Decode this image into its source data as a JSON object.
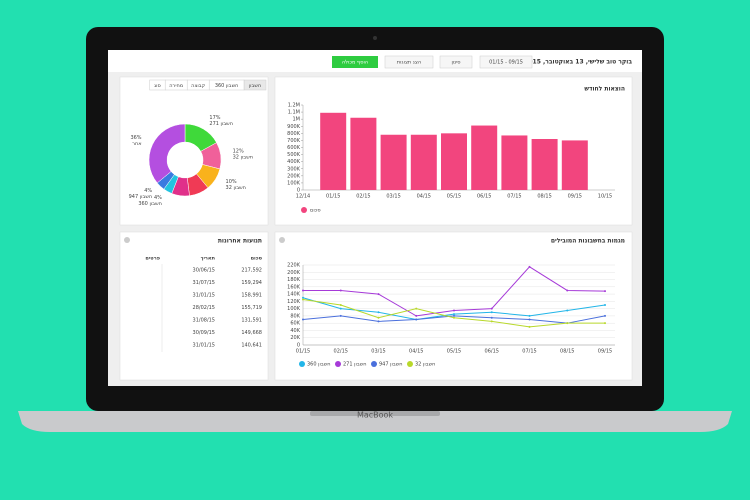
{
  "header": {
    "greeting": "בוקר טוב שלישי, 13 באוקטובר, 2015",
    "date_range": "01/15 - 09/15",
    "filter": "סינון",
    "views": "הצג תצוגות",
    "add": "הוסף מכולה"
  },
  "laptop": "MacBook",
  "tabs": [
    "חשבון",
    "חשבון 360",
    "קבוצה",
    "מחירה",
    "סוג"
  ],
  "table": {
    "title": "תנועות אחרונות",
    "columns": [
      "סכום",
      "תאריך",
      "פרטים"
    ],
    "rows": [
      [
        "217,592",
        "30/06/15"
      ],
      [
        "159,294",
        "31/07/15"
      ],
      [
        "158,991",
        "31/01/15"
      ],
      [
        "155,719",
        "28/02/15"
      ],
      [
        "131,591",
        "31/08/15"
      ],
      [
        "149,668",
        "30/09/15"
      ],
      [
        "140,641",
        "31/01/15"
      ]
    ]
  },
  "chart_data": [
    {
      "type": "donut",
      "categories": [
        "חשבון 271",
        "חשבון 32",
        "חשבון 32",
        null,
        null,
        "חשבון 360",
        "חשבון 947",
        "אחר"
      ],
      "values": [
        17,
        12,
        10,
        9,
        8,
        4,
        4,
        36
      ],
      "value_labels": [
        "17%",
        "12%",
        "10%",
        null,
        null,
        "4%",
        "4%",
        "36%"
      ],
      "colors": [
        "#3fd93a",
        "#f0609a",
        "#f9b21c",
        "#f03a55",
        "#e0308a",
        "#22c3e0",
        "#3a7be0",
        "#b44fe0"
      ]
    },
    {
      "type": "bar",
      "title": "הוצאות לחודש",
      "categories": [
        "12/14",
        "01/15",
        "02/15",
        "03/15",
        "04/15",
        "05/15",
        "06/15",
        "07/15",
        "08/15",
        "09/15",
        "10/15"
      ],
      "series": [
        {
          "name": "סכום",
          "color": "#f2457e",
          "values": [
            null,
            1090000,
            1020000,
            780000,
            780000,
            800000,
            910000,
            770000,
            720000,
            700000,
            null
          ]
        }
      ],
      "ylim": [
        0,
        1200000
      ],
      "yticks": [
        0,
        {
          "value": 100000,
          "label": "100K"
        },
        {
          "value": 200000,
          "label": "200K"
        },
        {
          "value": 300000,
          "label": "300K"
        },
        {
          "value": 400000,
          "label": "400K"
        },
        {
          "value": 500000,
          "label": "500K"
        },
        {
          "value": 600000,
          "label": "600K"
        },
        {
          "value": 700000,
          "label": "700K"
        },
        {
          "value": 800000,
          "label": "800K"
        },
        {
          "value": 900000,
          "label": "900K"
        },
        {
          "value": 1000000,
          "label": "1M"
        },
        {
          "value": 1100000,
          "label": "1.1M"
        },
        {
          "value": 1200000,
          "label": "1.2M"
        }
      ],
      "grid": false
    },
    {
      "type": "line",
      "title": "מגמות בחשבונות המובילים",
      "categories": [
        "01/15",
        "02/15",
        "03/15",
        "04/15",
        "05/15",
        "06/15",
        "07/15",
        "08/15",
        "09/15"
      ],
      "series": [
        {
          "name": "חשבון 360",
          "color": "#22b5e8",
          "values": [
            130000,
            100000,
            90000,
            70000,
            85000,
            90000,
            80000,
            95000,
            110000
          ]
        },
        {
          "name": "חשבון 271",
          "color": "#a63ad8",
          "values": [
            150000,
            150000,
            140000,
            80000,
            95000,
            100000,
            215000,
            150000,
            148000
          ]
        },
        {
          "name": "חשבון 947",
          "color": "#4a6fdc",
          "values": [
            70000,
            80000,
            65000,
            70000,
            80000,
            75000,
            70000,
            60000,
            80000
          ]
        },
        {
          "name": "חשבון 32",
          "color": "#b8d82a",
          "values": [
            125000,
            110000,
            75000,
            100000,
            75000,
            65000,
            50000,
            60000,
            60000
          ]
        }
      ],
      "ylim": [
        0,
        220000
      ],
      "yticks": [
        0,
        {
          "value": 20000,
          "label": "20K"
        },
        {
          "value": 40000,
          "label": "40K"
        },
        {
          "value": 60000,
          "label": "60K"
        },
        {
          "value": 80000,
          "label": "80K"
        },
        {
          "value": 100000,
          "label": "100K"
        },
        {
          "value": 120000,
          "label": "120K"
        },
        {
          "value": 140000,
          "label": "140K"
        },
        {
          "value": 160000,
          "label": "160K"
        },
        {
          "value": 180000,
          "label": "180K"
        },
        {
          "value": 200000,
          "label": "200K"
        },
        {
          "value": 220000,
          "label": "220K"
        }
      ],
      "grid": true
    }
  ]
}
